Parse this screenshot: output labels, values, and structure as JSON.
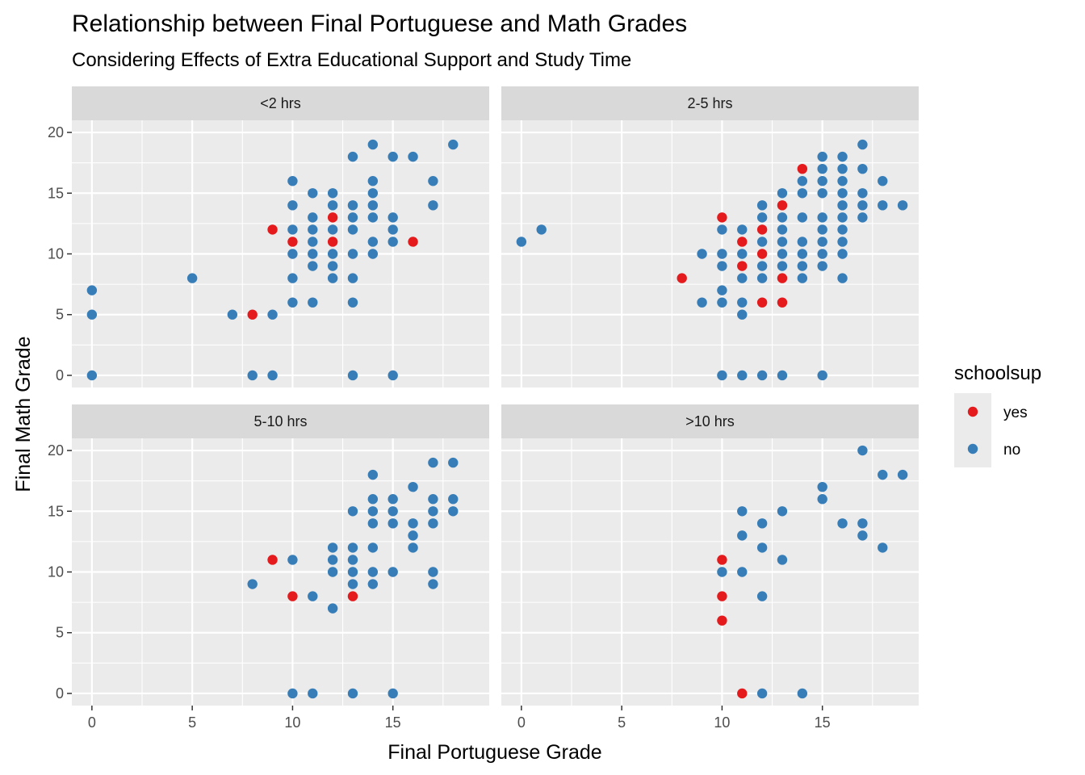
{
  "chart_data": {
    "type": "scatter",
    "title": "Relationship between Final Portuguese and Math Grades",
    "subtitle": "Considering Effects of Extra Educational Support and Study Time",
    "xlabel": "Final Portuguese Grade",
    "ylabel": "Final Math Grade",
    "xlim": [
      -1,
      19.8
    ],
    "ylim": [
      -1,
      21
    ],
    "x_ticks": [
      0,
      5,
      10,
      15
    ],
    "y_ticks": [
      0,
      5,
      10,
      15,
      20
    ],
    "grid": true,
    "legend": {
      "title": "schoolsup",
      "placement": "right",
      "entries": [
        {
          "label": "yes",
          "color": "#e41a1c"
        },
        {
          "label": "no",
          "color": "#377eb8"
        }
      ]
    },
    "colors": {
      "yes": "#e41a1c",
      "no": "#377eb8"
    },
    "facets": [
      {
        "label": "<2 hrs",
        "points": [
          [
            0,
            7,
            "no"
          ],
          [
            0,
            5,
            "no"
          ],
          [
            0,
            0,
            "no"
          ],
          [
            5,
            8,
            "no"
          ],
          [
            7,
            5,
            "no"
          ],
          [
            8,
            5,
            "yes"
          ],
          [
            8,
            0,
            "no"
          ],
          [
            9,
            12,
            "yes"
          ],
          [
            9,
            5,
            "no"
          ],
          [
            9,
            0,
            "no"
          ],
          [
            10,
            16,
            "no"
          ],
          [
            10,
            14,
            "no"
          ],
          [
            10,
            12,
            "no"
          ],
          [
            10,
            11,
            "yes"
          ],
          [
            10,
            10,
            "no"
          ],
          [
            10,
            8,
            "no"
          ],
          [
            10,
            6,
            "no"
          ],
          [
            11,
            15,
            "no"
          ],
          [
            11,
            13,
            "no"
          ],
          [
            11,
            12,
            "no"
          ],
          [
            11,
            11,
            "no"
          ],
          [
            11,
            10,
            "no"
          ],
          [
            11,
            9,
            "no"
          ],
          [
            11,
            6,
            "no"
          ],
          [
            12,
            15,
            "no"
          ],
          [
            12,
            14,
            "no"
          ],
          [
            12,
            13,
            "yes"
          ],
          [
            12,
            12,
            "no"
          ],
          [
            12,
            11,
            "yes"
          ],
          [
            12,
            10,
            "no"
          ],
          [
            12,
            9,
            "no"
          ],
          [
            12,
            8,
            "no"
          ],
          [
            13,
            18,
            "no"
          ],
          [
            13,
            14,
            "no"
          ],
          [
            13,
            13,
            "no"
          ],
          [
            13,
            12,
            "no"
          ],
          [
            13,
            10,
            "no"
          ],
          [
            13,
            8,
            "no"
          ],
          [
            13,
            6,
            "no"
          ],
          [
            13,
            0,
            "no"
          ],
          [
            14,
            19,
            "no"
          ],
          [
            14,
            16,
            "no"
          ],
          [
            14,
            15,
            "no"
          ],
          [
            14,
            14,
            "no"
          ],
          [
            14,
            13,
            "no"
          ],
          [
            14,
            11,
            "no"
          ],
          [
            14,
            10,
            "no"
          ],
          [
            15,
            18,
            "no"
          ],
          [
            15,
            13,
            "no"
          ],
          [
            15,
            12,
            "no"
          ],
          [
            15,
            11,
            "no"
          ],
          [
            15,
            0,
            "no"
          ],
          [
            16,
            18,
            "no"
          ],
          [
            16,
            11,
            "yes"
          ],
          [
            17,
            16,
            "no"
          ],
          [
            17,
            14,
            "no"
          ],
          [
            18,
            19,
            "no"
          ]
        ]
      },
      {
        "label": "2-5 hrs",
        "points": [
          [
            0,
            11,
            "no"
          ],
          [
            1,
            12,
            "no"
          ],
          [
            8,
            8,
            "yes"
          ],
          [
            9,
            10,
            "no"
          ],
          [
            9,
            6,
            "no"
          ],
          [
            10,
            13,
            "yes"
          ],
          [
            10,
            12,
            "no"
          ],
          [
            10,
            10,
            "no"
          ],
          [
            10,
            9,
            "no"
          ],
          [
            10,
            7,
            "no"
          ],
          [
            10,
            6,
            "no"
          ],
          [
            10,
            0,
            "no"
          ],
          [
            11,
            12,
            "no"
          ],
          [
            11,
            11,
            "yes"
          ],
          [
            11,
            10,
            "no"
          ],
          [
            11,
            9,
            "yes"
          ],
          [
            11,
            8,
            "no"
          ],
          [
            11,
            6,
            "no"
          ],
          [
            11,
            5,
            "no"
          ],
          [
            11,
            0,
            "no"
          ],
          [
            12,
            14,
            "no"
          ],
          [
            12,
            13,
            "no"
          ],
          [
            12,
            12,
            "yes"
          ],
          [
            12,
            11,
            "no"
          ],
          [
            12,
            10,
            "yes"
          ],
          [
            12,
            9,
            "no"
          ],
          [
            12,
            8,
            "no"
          ],
          [
            12,
            6,
            "yes"
          ],
          [
            12,
            0,
            "no"
          ],
          [
            13,
            15,
            "no"
          ],
          [
            13,
            14,
            "yes"
          ],
          [
            13,
            13,
            "no"
          ],
          [
            13,
            12,
            "no"
          ],
          [
            13,
            11,
            "no"
          ],
          [
            13,
            10,
            "no"
          ],
          [
            13,
            9,
            "no"
          ],
          [
            13,
            8,
            "yes"
          ],
          [
            13,
            6,
            "yes"
          ],
          [
            13,
            0,
            "no"
          ],
          [
            14,
            17,
            "yes"
          ],
          [
            14,
            16,
            "no"
          ],
          [
            14,
            15,
            "no"
          ],
          [
            14,
            13,
            "no"
          ],
          [
            14,
            11,
            "no"
          ],
          [
            14,
            10,
            "no"
          ],
          [
            14,
            9,
            "no"
          ],
          [
            14,
            8,
            "no"
          ],
          [
            15,
            18,
            "no"
          ],
          [
            15,
            17,
            "no"
          ],
          [
            15,
            16,
            "no"
          ],
          [
            15,
            15,
            "no"
          ],
          [
            15,
            13,
            "no"
          ],
          [
            15,
            12,
            "no"
          ],
          [
            15,
            11,
            "no"
          ],
          [
            15,
            10,
            "no"
          ],
          [
            15,
            9,
            "no"
          ],
          [
            15,
            0,
            "no"
          ],
          [
            16,
            18,
            "no"
          ],
          [
            16,
            17,
            "no"
          ],
          [
            16,
            16,
            "no"
          ],
          [
            16,
            15,
            "no"
          ],
          [
            16,
            14,
            "no"
          ],
          [
            16,
            13,
            "no"
          ],
          [
            16,
            12,
            "no"
          ],
          [
            16,
            11,
            "no"
          ],
          [
            16,
            10,
            "no"
          ],
          [
            16,
            8,
            "no"
          ],
          [
            17,
            19,
            "no"
          ],
          [
            17,
            17,
            "no"
          ],
          [
            17,
            15,
            "no"
          ],
          [
            17,
            14,
            "no"
          ],
          [
            17,
            13,
            "no"
          ],
          [
            18,
            16,
            "no"
          ],
          [
            18,
            14,
            "no"
          ],
          [
            19,
            14,
            "no"
          ]
        ]
      },
      {
        "label": "5-10 hrs",
        "points": [
          [
            8,
            9,
            "no"
          ],
          [
            9,
            11,
            "yes"
          ],
          [
            10,
            11,
            "no"
          ],
          [
            10,
            8,
            "yes"
          ],
          [
            10,
            0,
            "no"
          ],
          [
            11,
            8,
            "no"
          ],
          [
            11,
            0,
            "no"
          ],
          [
            12,
            12,
            "no"
          ],
          [
            12,
            11,
            "no"
          ],
          [
            12,
            10,
            "no"
          ],
          [
            12,
            7,
            "no"
          ],
          [
            13,
            15,
            "no"
          ],
          [
            13,
            12,
            "no"
          ],
          [
            13,
            11,
            "no"
          ],
          [
            13,
            10,
            "no"
          ],
          [
            13,
            9,
            "no"
          ],
          [
            13,
            8,
            "yes"
          ],
          [
            13,
            0,
            "no"
          ],
          [
            14,
            18,
            "no"
          ],
          [
            14,
            16,
            "no"
          ],
          [
            14,
            15,
            "no"
          ],
          [
            14,
            14,
            "no"
          ],
          [
            14,
            12,
            "no"
          ],
          [
            14,
            10,
            "no"
          ],
          [
            14,
            9,
            "no"
          ],
          [
            15,
            16,
            "no"
          ],
          [
            15,
            15,
            "no"
          ],
          [
            15,
            14,
            "no"
          ],
          [
            15,
            10,
            "no"
          ],
          [
            15,
            0,
            "no"
          ],
          [
            16,
            17,
            "no"
          ],
          [
            16,
            14,
            "no"
          ],
          [
            16,
            13,
            "no"
          ],
          [
            16,
            12,
            "no"
          ],
          [
            17,
            19,
            "no"
          ],
          [
            17,
            16,
            "no"
          ],
          [
            17,
            15,
            "no"
          ],
          [
            17,
            14,
            "no"
          ],
          [
            17,
            10,
            "no"
          ],
          [
            17,
            9,
            "no"
          ],
          [
            18,
            19,
            "no"
          ],
          [
            18,
            16,
            "no"
          ],
          [
            18,
            15,
            "no"
          ]
        ]
      },
      {
        "label": ">10 hrs",
        "points": [
          [
            10,
            11,
            "yes"
          ],
          [
            10,
            10,
            "no"
          ],
          [
            10,
            8,
            "yes"
          ],
          [
            10,
            6,
            "yes"
          ],
          [
            11,
            15,
            "no"
          ],
          [
            11,
            13,
            "no"
          ],
          [
            11,
            10,
            "no"
          ],
          [
            11,
            0,
            "yes"
          ],
          [
            12,
            14,
            "no"
          ],
          [
            12,
            12,
            "no"
          ],
          [
            12,
            8,
            "no"
          ],
          [
            12,
            0,
            "no"
          ],
          [
            13,
            15,
            "no"
          ],
          [
            13,
            11,
            "no"
          ],
          [
            14,
            0,
            "no"
          ],
          [
            15,
            17,
            "no"
          ],
          [
            15,
            16,
            "no"
          ],
          [
            16,
            14,
            "no"
          ],
          [
            17,
            20,
            "no"
          ],
          [
            17,
            14,
            "no"
          ],
          [
            17,
            13,
            "no"
          ],
          [
            18,
            18,
            "no"
          ],
          [
            18,
            12,
            "no"
          ],
          [
            19,
            18,
            "no"
          ]
        ]
      }
    ]
  }
}
